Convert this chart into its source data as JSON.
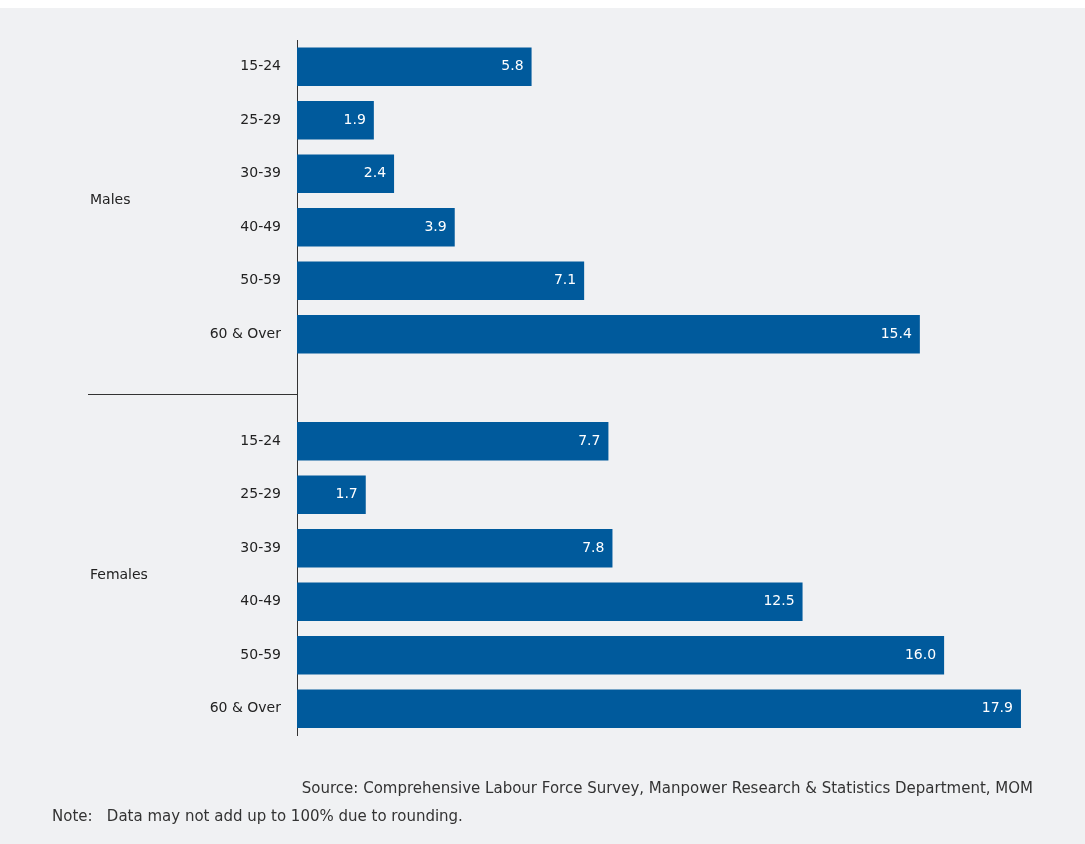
{
  "chart_data": {
    "type": "bar",
    "orientation": "horizontal",
    "categories": [
      "15-24",
      "25-29",
      "30-39",
      "40-49",
      "50-59",
      "60 & Over",
      null,
      "15-24",
      "25-29",
      "30-39",
      "40-49",
      "50-59",
      "60 & Over"
    ],
    "values": [
      5.8,
      1.9,
      2.4,
      3.9,
      7.1,
      15.4,
      null,
      7.7,
      1.7,
      7.8,
      12.5,
      16.0,
      17.9
    ],
    "value_labels": [
      "5.8",
      "1.9",
      "2.4",
      "3.9",
      "7.1",
      "15.4",
      null,
      "7.7",
      "1.7",
      "7.8",
      "12.5",
      "16.0",
      "17.9"
    ],
    "color": "#005a9c",
    "legend": false,
    "annotations": [
      "Males",
      "Females",
      "Source: Comprehensive Labour Force Survey, Manpower Research & Statistics Department, MOM",
      "Note:   Data may not add up to 100% due to rounding."
    ]
  }
}
